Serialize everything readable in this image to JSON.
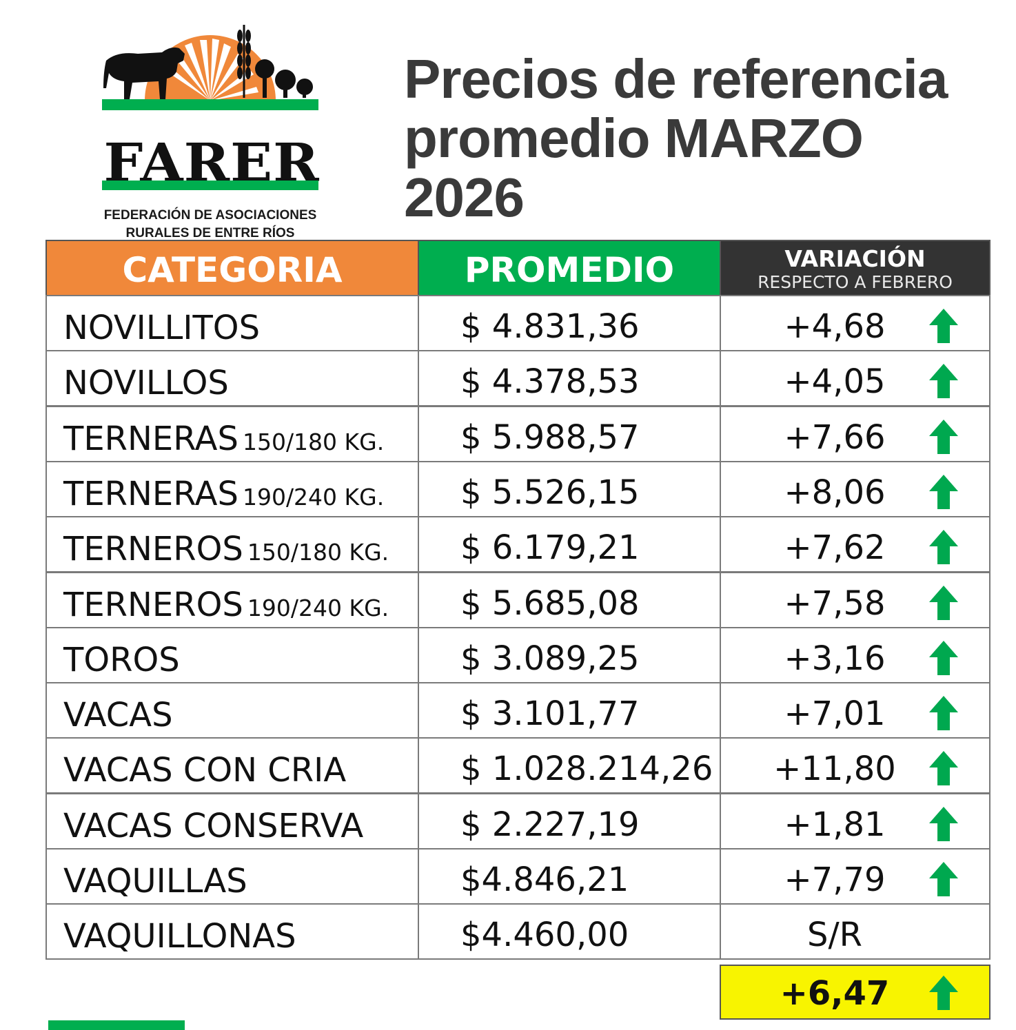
{
  "logo": {
    "brand": "FARER",
    "subtitle_line1": "FEDERACIÓN DE ASOCIACIONES",
    "subtitle_line2": "RURALES DE ENTRE RÍOS"
  },
  "title": {
    "line1": "Precios de referencia",
    "line2": "promedio MARZO",
    "line3": "2026"
  },
  "table": {
    "headers": {
      "categoria": "CATEGORIA",
      "promedio": "PROMEDIO",
      "variacion": "VARIACIÓN",
      "variacion_sub": "RESPECTO A FEBRERO"
    },
    "rows": [
      {
        "category": "NOVILLITOS",
        "detail": "",
        "price": "$ 4.831,36",
        "variation": "+4,68",
        "trend": "up"
      },
      {
        "category": "NOVILLOS",
        "detail": "",
        "price": "$ 4.378,53",
        "variation": "+4,05",
        "trend": "up"
      },
      {
        "category": "TERNERAS",
        "detail": "150/180 KG.",
        "price": "$ 5.988,57",
        "variation": "+7,66",
        "trend": "up"
      },
      {
        "category": "TERNERAS",
        "detail": "190/240 KG.",
        "price": "$ 5.526,15",
        "variation": "+8,06",
        "trend": "up"
      },
      {
        "category": "TERNEROS",
        "detail": "150/180 KG.",
        "price": "$ 6.179,21",
        "variation": "+7,62",
        "trend": "up"
      },
      {
        "category": "TERNEROS",
        "detail": "190/240 KG.",
        "price": "$ 5.685,08",
        "variation": "+7,58",
        "trend": "up"
      },
      {
        "category": "TOROS",
        "detail": "",
        "price": "$ 3.089,25",
        "variation": "+3,16",
        "trend": "up"
      },
      {
        "category": "VACAS",
        "detail": "",
        "price": "$ 3.101,77",
        "variation": "+7,01",
        "trend": "up"
      },
      {
        "category": "VACAS CON CRIA",
        "detail": "",
        "price": "$ 1.028.214,26",
        "variation": "+11,80",
        "trend": "up"
      },
      {
        "category": "VACAS CONSERVA",
        "detail": "",
        "price": "$ 2.227,19",
        "variation": "+1,81",
        "trend": "up"
      },
      {
        "category": "VAQUILLAS",
        "detail": "",
        "price": "$4.846,21",
        "variation": "+7,79",
        "trend": "up"
      },
      {
        "category": "VAQUILLONAS",
        "detail": "",
        "price": "$4.460,00",
        "variation": "S/R",
        "trend": "none"
      }
    ],
    "total_variation": "+6,47",
    "total_trend": "up"
  },
  "colors": {
    "header_categoria": "#f0883a",
    "header_promedio": "#00ae4f",
    "header_variacion": "#333333",
    "arrow_up": "#00a84f",
    "total_highlight": "#f8f400"
  },
  "icons": {
    "trend_up": "arrow-up-icon"
  }
}
